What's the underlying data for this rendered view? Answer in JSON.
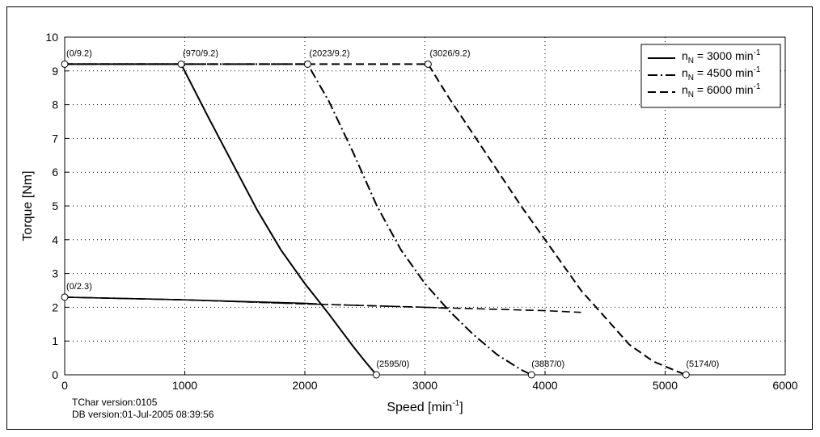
{
  "footer": {
    "tchar_version": "TChar version:0105",
    "db_version": "DB version:01-Jul-2005 08:39:56"
  },
  "chart_data": {
    "type": "line",
    "title": "",
    "xlabel": "Speed [min",
    "xlabel_sup": "-1",
    "xlabel_tail": "]",
    "ylabel": "Torque [Nm]",
    "xlim": [
      0,
      6000
    ],
    "ylim": [
      0,
      10
    ],
    "xticks": [
      0,
      1000,
      2000,
      3000,
      4000,
      5000,
      6000
    ],
    "yticks": [
      0,
      1,
      2,
      3,
      4,
      5,
      6,
      7,
      8,
      9,
      10
    ],
    "grid": true,
    "legend_position": "top-right",
    "series": [
      {
        "name": "n_N = 3000 min^-1",
        "legend_main": "n",
        "legend_sub": "N",
        "legend_value": " = 3000 min",
        "legend_sup": "-1",
        "dash": "solid",
        "peak_curve": [
          [
            0,
            9.2
          ],
          [
            970,
            9.2
          ],
          [
            1200,
            7.6
          ],
          [
            1400,
            6.25
          ],
          [
            1600,
            4.9
          ],
          [
            1800,
            3.7
          ],
          [
            2000,
            2.7
          ],
          [
            2200,
            1.8
          ],
          [
            2400,
            0.85
          ],
          [
            2500,
            0.4
          ],
          [
            2595,
            0
          ]
        ],
        "continuous_curve": [
          [
            0,
            2.3
          ],
          [
            1000,
            2.22
          ],
          [
            2000,
            2.12
          ],
          [
            2100,
            2.1
          ]
        ]
      },
      {
        "name": "n_N = 4500 min^-1",
        "legend_main": "n",
        "legend_sub": "N",
        "legend_value": " = 4500 min",
        "legend_sup": "-1",
        "dash": "dashdot",
        "peak_curve": [
          [
            0,
            9.2
          ],
          [
            2023,
            9.2
          ],
          [
            2200,
            8.1
          ],
          [
            2400,
            6.6
          ],
          [
            2600,
            5.0
          ],
          [
            2800,
            3.7
          ],
          [
            3000,
            2.7
          ],
          [
            3200,
            1.9
          ],
          [
            3400,
            1.2
          ],
          [
            3600,
            0.6
          ],
          [
            3800,
            0.15
          ],
          [
            3887,
            0
          ]
        ],
        "continuous_curve": [
          [
            0,
            2.3
          ],
          [
            1000,
            2.22
          ],
          [
            2000,
            2.1
          ],
          [
            3000,
            2.0
          ],
          [
            3200,
            1.97
          ]
        ]
      },
      {
        "name": "n_N = 6000 min^-1",
        "legend_main": "n",
        "legend_sub": "N",
        "legend_value": " = 6000 min",
        "legend_sup": "-1",
        "dash": "dashed",
        "peak_curve": [
          [
            0,
            9.2
          ],
          [
            3026,
            9.2
          ],
          [
            3200,
            8.2
          ],
          [
            3500,
            6.6
          ],
          [
            3800,
            5.0
          ],
          [
            4100,
            3.5
          ],
          [
            4300,
            2.5
          ],
          [
            4500,
            1.7
          ],
          [
            4700,
            0.9
          ],
          [
            4900,
            0.4
          ],
          [
            5100,
            0.1
          ],
          [
            5174,
            0
          ]
        ],
        "continuous_curve": [
          [
            0,
            2.3
          ],
          [
            1000,
            2.22
          ],
          [
            2000,
            2.1
          ],
          [
            3000,
            2.0
          ],
          [
            4000,
            1.9
          ],
          [
            4300,
            1.85
          ]
        ]
      }
    ],
    "annotations": [
      {
        "label": "(0/9.2)",
        "x": 0,
        "y": 9.2
      },
      {
        "label": "(970/9.2)",
        "x": 970,
        "y": 9.2
      },
      {
        "label": "(2023/9.2)",
        "x": 2023,
        "y": 9.2
      },
      {
        "label": "(3026/9.2)",
        "x": 3026,
        "y": 9.2
      },
      {
        "label": "(0/2.3)",
        "x": 0,
        "y": 2.3
      },
      {
        "label": "(2595/0)",
        "x": 2595,
        "y": 0
      },
      {
        "label": "(3887/0)",
        "x": 3887,
        "y": 0
      },
      {
        "label": "(5174/0)",
        "x": 5174,
        "y": 0
      }
    ]
  }
}
